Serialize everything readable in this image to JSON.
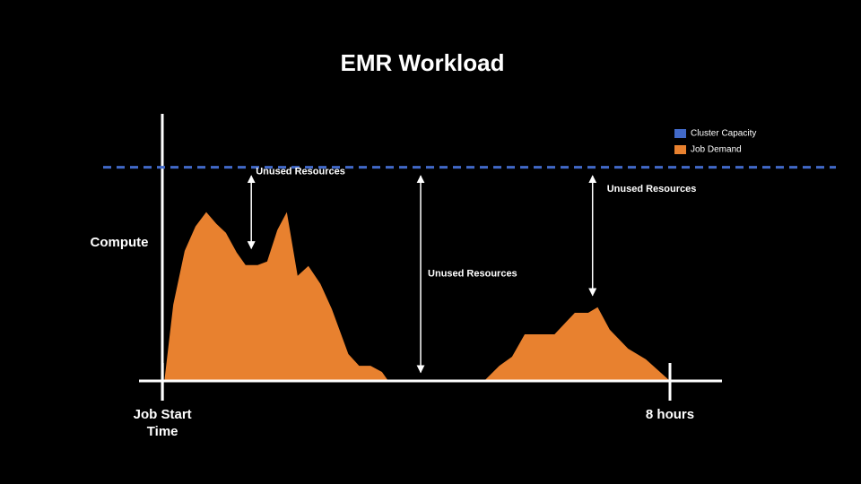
{
  "chart_data": {
    "type": "area",
    "title": "EMR Workload",
    "ylabel": "Compute",
    "x": [
      0.03,
      0.17,
      0.35,
      0.52,
      0.69,
      0.85,
      1.0,
      1.17,
      1.31,
      1.5,
      1.65,
      1.81,
      1.96,
      2.13,
      2.3,
      2.49,
      2.67,
      2.93,
      3.1,
      3.28,
      3.46,
      3.56,
      5.07,
      5.31,
      5.51,
      5.71,
      6.18,
      6.5,
      6.71,
      6.86,
      7.05,
      7.34,
      7.62,
      8
    ],
    "series": [
      {
        "name": "Job Demand",
        "color": "#e8812f",
        "values": [
          0,
          35.7,
          60.9,
          72.3,
          79.0,
          73.5,
          69.3,
          60.1,
          54.2,
          54.2,
          55.9,
          70.6,
          79.0,
          49.2,
          53.8,
          45.4,
          33.6,
          12.6,
          7.1,
          7.1,
          4.2,
          0,
          0,
          7.1,
          11.3,
          21.8,
          21.8,
          31.9,
          31.9,
          34.5,
          24.0,
          15.1,
          10.1,
          0
        ]
      }
    ],
    "hlines": [
      {
        "name": "Cluster Capacity",
        "color": "#4169c8",
        "value": 100,
        "style": "dashed"
      }
    ],
    "annotations": [
      {
        "text": "Unused Resources",
        "x": 1.4,
        "y": [
          96,
          62
        ]
      },
      {
        "text": "Unused Resources",
        "x": 4.07,
        "y": [
          96,
          4
        ]
      },
      {
        "text": "Unused Resources",
        "x": 6.78,
        "y": [
          96,
          40
        ]
      }
    ],
    "xlim": [
      -0.37,
      8.82
    ],
    "ylim": [
      0,
      125
    ],
    "xticks": [
      {
        "value": 0,
        "label": "Job Start Time"
      },
      {
        "value": 8,
        "label": "8 hours"
      }
    ],
    "legend": "upper right"
  }
}
